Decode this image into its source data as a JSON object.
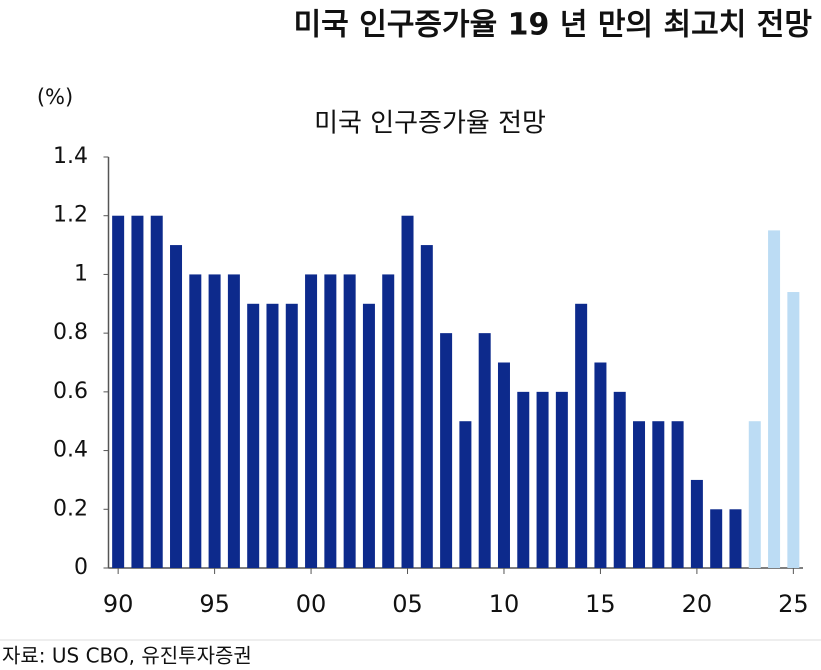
{
  "chart_data": {
    "type": "bar",
    "headline": "미국 인구증가율 19 년 만의 최고치 전망",
    "title": "미국 인구증가율 전망",
    "y_unit": "(%)",
    "source": "자료: US CBO, 유진투자증권",
    "categories": [
      "90",
      null,
      null,
      null,
      null,
      "95",
      null,
      null,
      null,
      null,
      "00",
      null,
      null,
      null,
      null,
      "05",
      null,
      null,
      null,
      null,
      "10",
      null,
      null,
      null,
      null,
      "15",
      null,
      null,
      null,
      null,
      "20",
      null,
      null,
      null,
      null,
      "25"
    ],
    "values": [
      1.2,
      1.2,
      1.2,
      1.1,
      1.0,
      1.0,
      1.0,
      0.9,
      0.9,
      0.9,
      1.0,
      1.0,
      1.0,
      0.9,
      1.0,
      1.2,
      1.1,
      0.8,
      0.5,
      0.8,
      0.7,
      0.6,
      0.6,
      0.6,
      0.9,
      0.7,
      0.6,
      0.5,
      0.5,
      0.5,
      0.3,
      0.2,
      0.2,
      0.5,
      1.15,
      0.94
    ],
    "colors": [
      "#0d2a8c",
      "#0d2a8c",
      "#0d2a8c",
      "#0d2a8c",
      "#0d2a8c",
      "#0d2a8c",
      "#0d2a8c",
      "#0d2a8c",
      "#0d2a8c",
      "#0d2a8c",
      "#0d2a8c",
      "#0d2a8c",
      "#0d2a8c",
      "#0d2a8c",
      "#0d2a8c",
      "#0d2a8c",
      "#0d2a8c",
      "#0d2a8c",
      "#0d2a8c",
      "#0d2a8c",
      "#0d2a8c",
      "#0d2a8c",
      "#0d2a8c",
      "#0d2a8c",
      "#0d2a8c",
      "#0d2a8c",
      "#0d2a8c",
      "#0d2a8c",
      "#0d2a8c",
      "#0d2a8c",
      "#0d2a8c",
      "#0d2a8c",
      "#0d2a8c",
      "#bcdcf4",
      "#bcdcf4",
      "#bcdcf4"
    ],
    "ylim": [
      0,
      1.4
    ],
    "yticks": [
      0,
      0.2,
      0.4,
      0.6,
      0.8,
      1,
      1.2,
      1.4
    ],
    "grid": false
  }
}
